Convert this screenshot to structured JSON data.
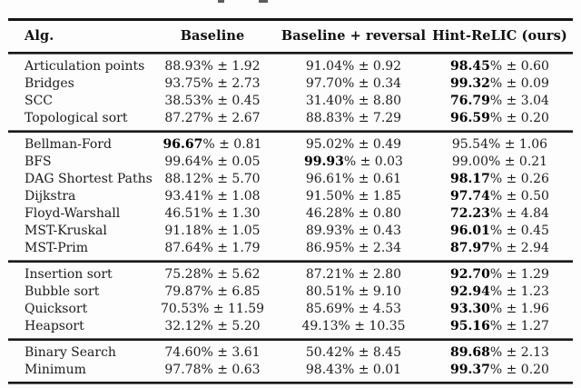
{
  "colors": {
    "background": "#fdfdfd",
    "text": "#1c1c1c",
    "rule": "#191919"
  },
  "table": {
    "columns": [
      "Alg.",
      "Baseline",
      "Baseline + reversal",
      "Hint-ReLIC (ours)"
    ],
    "symbols": {
      "percent": "%",
      "plus_minus": "±"
    },
    "groups": [
      {
        "rows": [
          {
            "alg": "Articulation points",
            "cells": [
              {
                "value": "88.93",
                "err": "1.92",
                "bold": false
              },
              {
                "value": "91.04",
                "err": "0.92",
                "bold": false
              },
              {
                "value": "98.45",
                "err": "0.60",
                "bold": true
              }
            ]
          },
          {
            "alg": "Bridges",
            "cells": [
              {
                "value": "93.75",
                "err": "2.73",
                "bold": false
              },
              {
                "value": "97.70",
                "err": "0.34",
                "bold": false
              },
              {
                "value": "99.32",
                "err": "0.09",
                "bold": true
              }
            ]
          },
          {
            "alg": "SCC",
            "cells": [
              {
                "value": "38.53",
                "err": "0.45",
                "bold": false
              },
              {
                "value": "31.40",
                "err": "8.80",
                "bold": false
              },
              {
                "value": "76.79",
                "err": "3.04",
                "bold": true
              }
            ]
          },
          {
            "alg": "Topological sort",
            "cells": [
              {
                "value": "87.27",
                "err": "2.67",
                "bold": false
              },
              {
                "value": "88.83",
                "err": "7.29",
                "bold": false
              },
              {
                "value": "96.59",
                "err": "0.20",
                "bold": true
              }
            ]
          }
        ]
      },
      {
        "rows": [
          {
            "alg": "Bellman-Ford",
            "cells": [
              {
                "value": "96.67",
                "err": "0.81",
                "bold": true
              },
              {
                "value": "95.02",
                "err": "0.49",
                "bold": false
              },
              {
                "value": "95.54",
                "err": "1.06",
                "bold": false
              }
            ]
          },
          {
            "alg": "BFS",
            "cells": [
              {
                "value": "99.64",
                "err": "0.05",
                "bold": false
              },
              {
                "value": "99.93",
                "err": "0.03",
                "bold": true
              },
              {
                "value": "99.00",
                "err": "0.21",
                "bold": false
              }
            ]
          },
          {
            "alg": "DAG Shortest Paths",
            "cells": [
              {
                "value": "88.12",
                "err": "5.70",
                "bold": false
              },
              {
                "value": "96.61",
                "err": "0.61",
                "bold": false
              },
              {
                "value": "98.17",
                "err": "0.26",
                "bold": true
              }
            ]
          },
          {
            "alg": "Dijkstra",
            "cells": [
              {
                "value": "93.41",
                "err": "1.08",
                "bold": false
              },
              {
                "value": "91.50",
                "err": "1.85",
                "bold": false
              },
              {
                "value": "97.74",
                "err": "0.50",
                "bold": true
              }
            ]
          },
          {
            "alg": "Floyd-Warshall",
            "cells": [
              {
                "value": "46.51",
                "err": "1.30",
                "bold": false
              },
              {
                "value": "46.28",
                "err": "0.80",
                "bold": false
              },
              {
                "value": "72.23",
                "err": "4.84",
                "bold": true
              }
            ]
          },
          {
            "alg": "MST-Kruskal",
            "cells": [
              {
                "value": "91.18",
                "err": "1.05",
                "bold": false
              },
              {
                "value": "89.93",
                "err": "0.43",
                "bold": false
              },
              {
                "value": "96.01",
                "err": "0.45",
                "bold": true
              }
            ]
          },
          {
            "alg": "MST-Prim",
            "cells": [
              {
                "value": "87.64",
                "err": "1.79",
                "bold": false
              },
              {
                "value": "86.95",
                "err": "2.34",
                "bold": false
              },
              {
                "value": "87.97",
                "err": "2.94",
                "bold": true
              }
            ]
          }
        ]
      },
      {
        "rows": [
          {
            "alg": "Insertion sort",
            "cells": [
              {
                "value": "75.28",
                "err": "5.62",
                "bold": false
              },
              {
                "value": "87.21",
                "err": "2.80",
                "bold": false
              },
              {
                "value": "92.70",
                "err": "1.29",
                "bold": true
              }
            ]
          },
          {
            "alg": "Bubble sort",
            "cells": [
              {
                "value": "79.87",
                "err": "6.85",
                "bold": false
              },
              {
                "value": "80.51",
                "err": "9.10",
                "bold": false
              },
              {
                "value": "92.94",
                "err": "1.23",
                "bold": true
              }
            ]
          },
          {
            "alg": "Quicksort",
            "cells": [
              {
                "value": "70.53",
                "err": "11.59",
                "bold": false
              },
              {
                "value": "85.69",
                "err": "4.53",
                "bold": false
              },
              {
                "value": "93.30",
                "err": "1.96",
                "bold": true
              }
            ]
          },
          {
            "alg": "Heapsort",
            "cells": [
              {
                "value": "32.12",
                "err": "5.20",
                "bold": false
              },
              {
                "value": "49.13",
                "err": "10.35",
                "bold": false
              },
              {
                "value": "95.16",
                "err": "1.27",
                "bold": true
              }
            ]
          }
        ]
      },
      {
        "rows": [
          {
            "alg": "Binary Search",
            "cells": [
              {
                "value": "74.60",
                "err": "3.61",
                "bold": false
              },
              {
                "value": "50.42",
                "err": "8.45",
                "bold": false
              },
              {
                "value": "89.68",
                "err": "2.13",
                "bold": true
              }
            ]
          },
          {
            "alg": "Minimum",
            "cells": [
              {
                "value": "97.78",
                "err": "0.63",
                "bold": false
              },
              {
                "value": "98.43",
                "err": "0.01",
                "bold": false
              },
              {
                "value": "99.37",
                "err": "0.20",
                "bold": true
              }
            ]
          }
        ]
      }
    ]
  }
}
